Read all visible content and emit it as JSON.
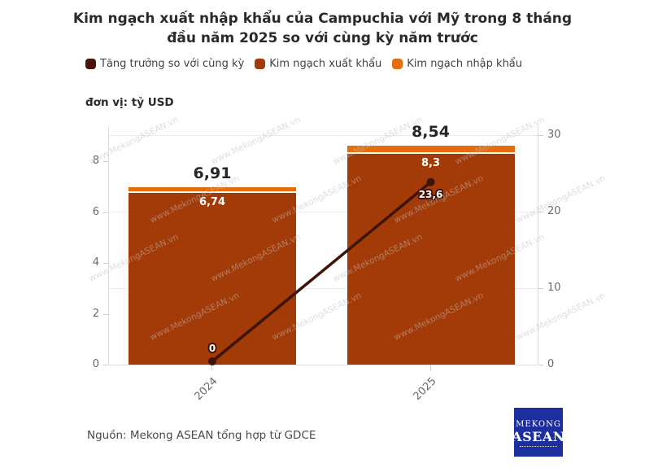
{
  "title": {
    "line1": "Kim ngạch xuất nhập khẩu của Campuchia với Mỹ trong 8 tháng",
    "line2": "đầu năm 2025 so với cùng kỳ năm trước"
  },
  "unit_label": "đơn vị: tỷ USD",
  "source": "Nguồn: Mekong ASEAN tổng hợp từ GDCE",
  "watermark": "www.MekongASEAN.vn",
  "logo": {
    "line1": "Mekong",
    "line2": "ASEAN"
  },
  "legend": [
    {
      "label": "Tăng trưởng so với cùng kỳ",
      "color": "#4a1607"
    },
    {
      "label": "Kim ngạch xuất khẩu",
      "color": "#a33b08"
    },
    {
      "label": "Kim ngạch nhập khẩu",
      "color": "#e76d0c"
    }
  ],
  "chart_data": {
    "type": "bar+line",
    "categories": [
      "2024",
      "2025"
    ],
    "series": [
      {
        "name": "Tăng trưởng so với cùng kỳ",
        "type": "line",
        "axis": "right",
        "values": [
          0,
          23.6
        ],
        "point_labels": [
          "0",
          "23,6"
        ],
        "point_label_positions": [
          "above",
          "below"
        ],
        "color": "#3f1306"
      },
      {
        "name": "Kim ngạch xuất khẩu",
        "type": "bar",
        "stack": "total",
        "axis": "left",
        "values": [
          6.74,
          8.3
        ],
        "bar_labels": [
          "6,74",
          "8,3"
        ],
        "color": "#a33b08"
      },
      {
        "name": "Kim ngạch nhập khẩu",
        "type": "bar",
        "stack": "total",
        "axis": "left",
        "values": [
          0.17,
          0.24
        ],
        "bar_labels": [
          "",
          ""
        ],
        "color": "#e76d0c"
      }
    ],
    "total_labels": [
      "6,91",
      "8,54"
    ],
    "totals": [
      6.91,
      8.54
    ],
    "left_axis": {
      "ticks": [
        "0",
        "2",
        "4",
        "6",
        "8"
      ],
      "tick_values": [
        0,
        2,
        4,
        6,
        8
      ],
      "max": 9.4
    },
    "right_axis": {
      "ticks": [
        "0",
        "10",
        "20",
        "30"
      ],
      "tick_values": [
        0,
        10,
        20,
        30
      ],
      "max": 31.2
    },
    "grid": true,
    "legend_position": "top-left"
  },
  "colors": {
    "grid": "#ececec",
    "axis_line": "#dcdcdc",
    "tick": "#cccccc",
    "axis_text": "#666a6e",
    "total_label": "#262626",
    "bar_label": "#ffffff",
    "logo_bg": "#1d2f9f"
  }
}
